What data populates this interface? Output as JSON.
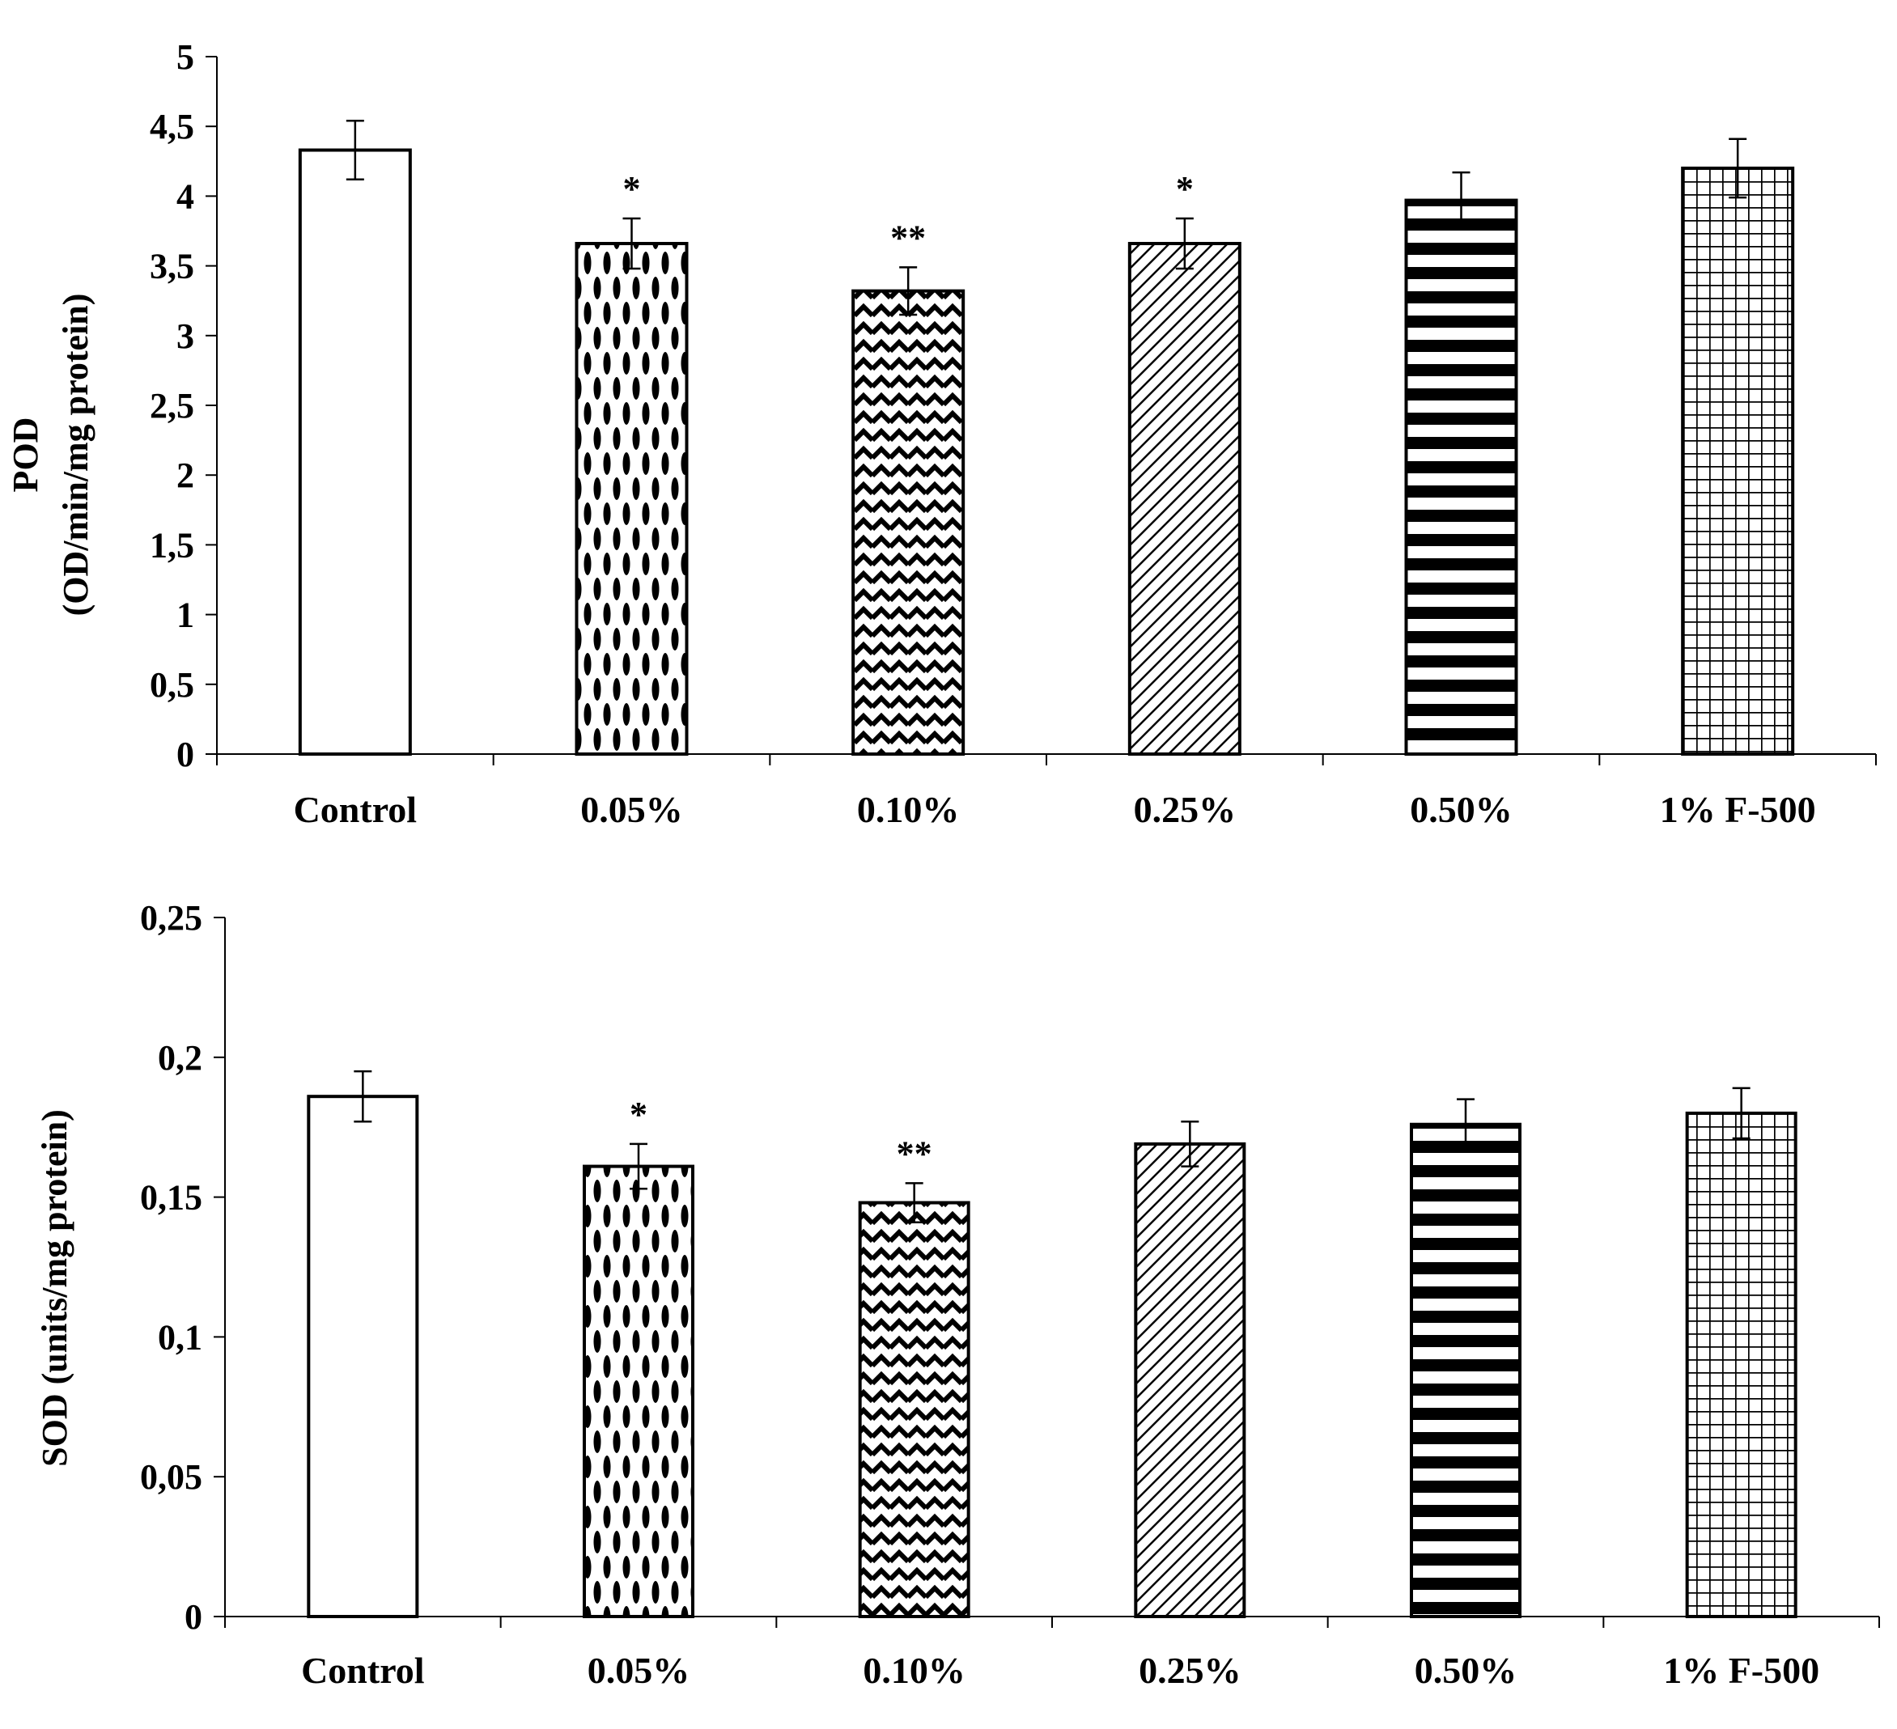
{
  "chart_data": [
    {
      "type": "bar",
      "title": "",
      "categories": [
        "Control",
        "0.05%",
        "0.10%",
        "0.25%",
        "0.50%",
        "1% F-500"
      ],
      "values": [
        4.33,
        3.66,
        3.32,
        3.66,
        3.97,
        4.2
      ],
      "errors": [
        0.21,
        0.18,
        0.17,
        0.18,
        0.2,
        0.21
      ],
      "significance": [
        "",
        "*",
        "**",
        "*",
        "",
        ""
      ],
      "ylabel_line1": "POD",
      "ylabel_line2": "(OD/min/mg protein)",
      "xlabel": "",
      "ylim": [
        0,
        5
      ],
      "yticks": [
        0,
        0.5,
        1,
        1.5,
        2,
        2.5,
        3,
        3.5,
        4,
        4.5,
        5
      ],
      "ytick_labels": [
        "0",
        "0,5",
        "1",
        "1,5",
        "2",
        "2,5",
        "3",
        "3,5",
        "4",
        "4,5",
        "5"
      ],
      "grid": false,
      "bar_patterns": [
        "none",
        "ellipse-dots",
        "zigzag",
        "diagonal",
        "horizontal-stripes",
        "grid"
      ]
    },
    {
      "type": "bar",
      "title": "",
      "categories": [
        "Control",
        "0.05%",
        "0.10%",
        "0.25%",
        "0.50%",
        "1% F-500"
      ],
      "values": [
        0.186,
        0.161,
        0.148,
        0.169,
        0.176,
        0.18
      ],
      "errors": [
        0.009,
        0.008,
        0.007,
        0.008,
        0.009,
        0.009
      ],
      "significance": [
        "",
        "*",
        "**",
        "",
        "",
        ""
      ],
      "ylabel_line1": "SOD (units/mg protein)",
      "ylabel_line2": "",
      "xlabel": "",
      "ylim": [
        0,
        0.25
      ],
      "yticks": [
        0,
        0.05,
        0.1,
        0.15,
        0.2,
        0.25
      ],
      "ytick_labels": [
        "0",
        "0,05",
        "0,1",
        "0,15",
        "0,2",
        "0,25"
      ],
      "grid": false,
      "bar_patterns": [
        "none",
        "ellipse-dots",
        "zigzag",
        "diagonal",
        "horizontal-stripes",
        "grid"
      ]
    }
  ]
}
